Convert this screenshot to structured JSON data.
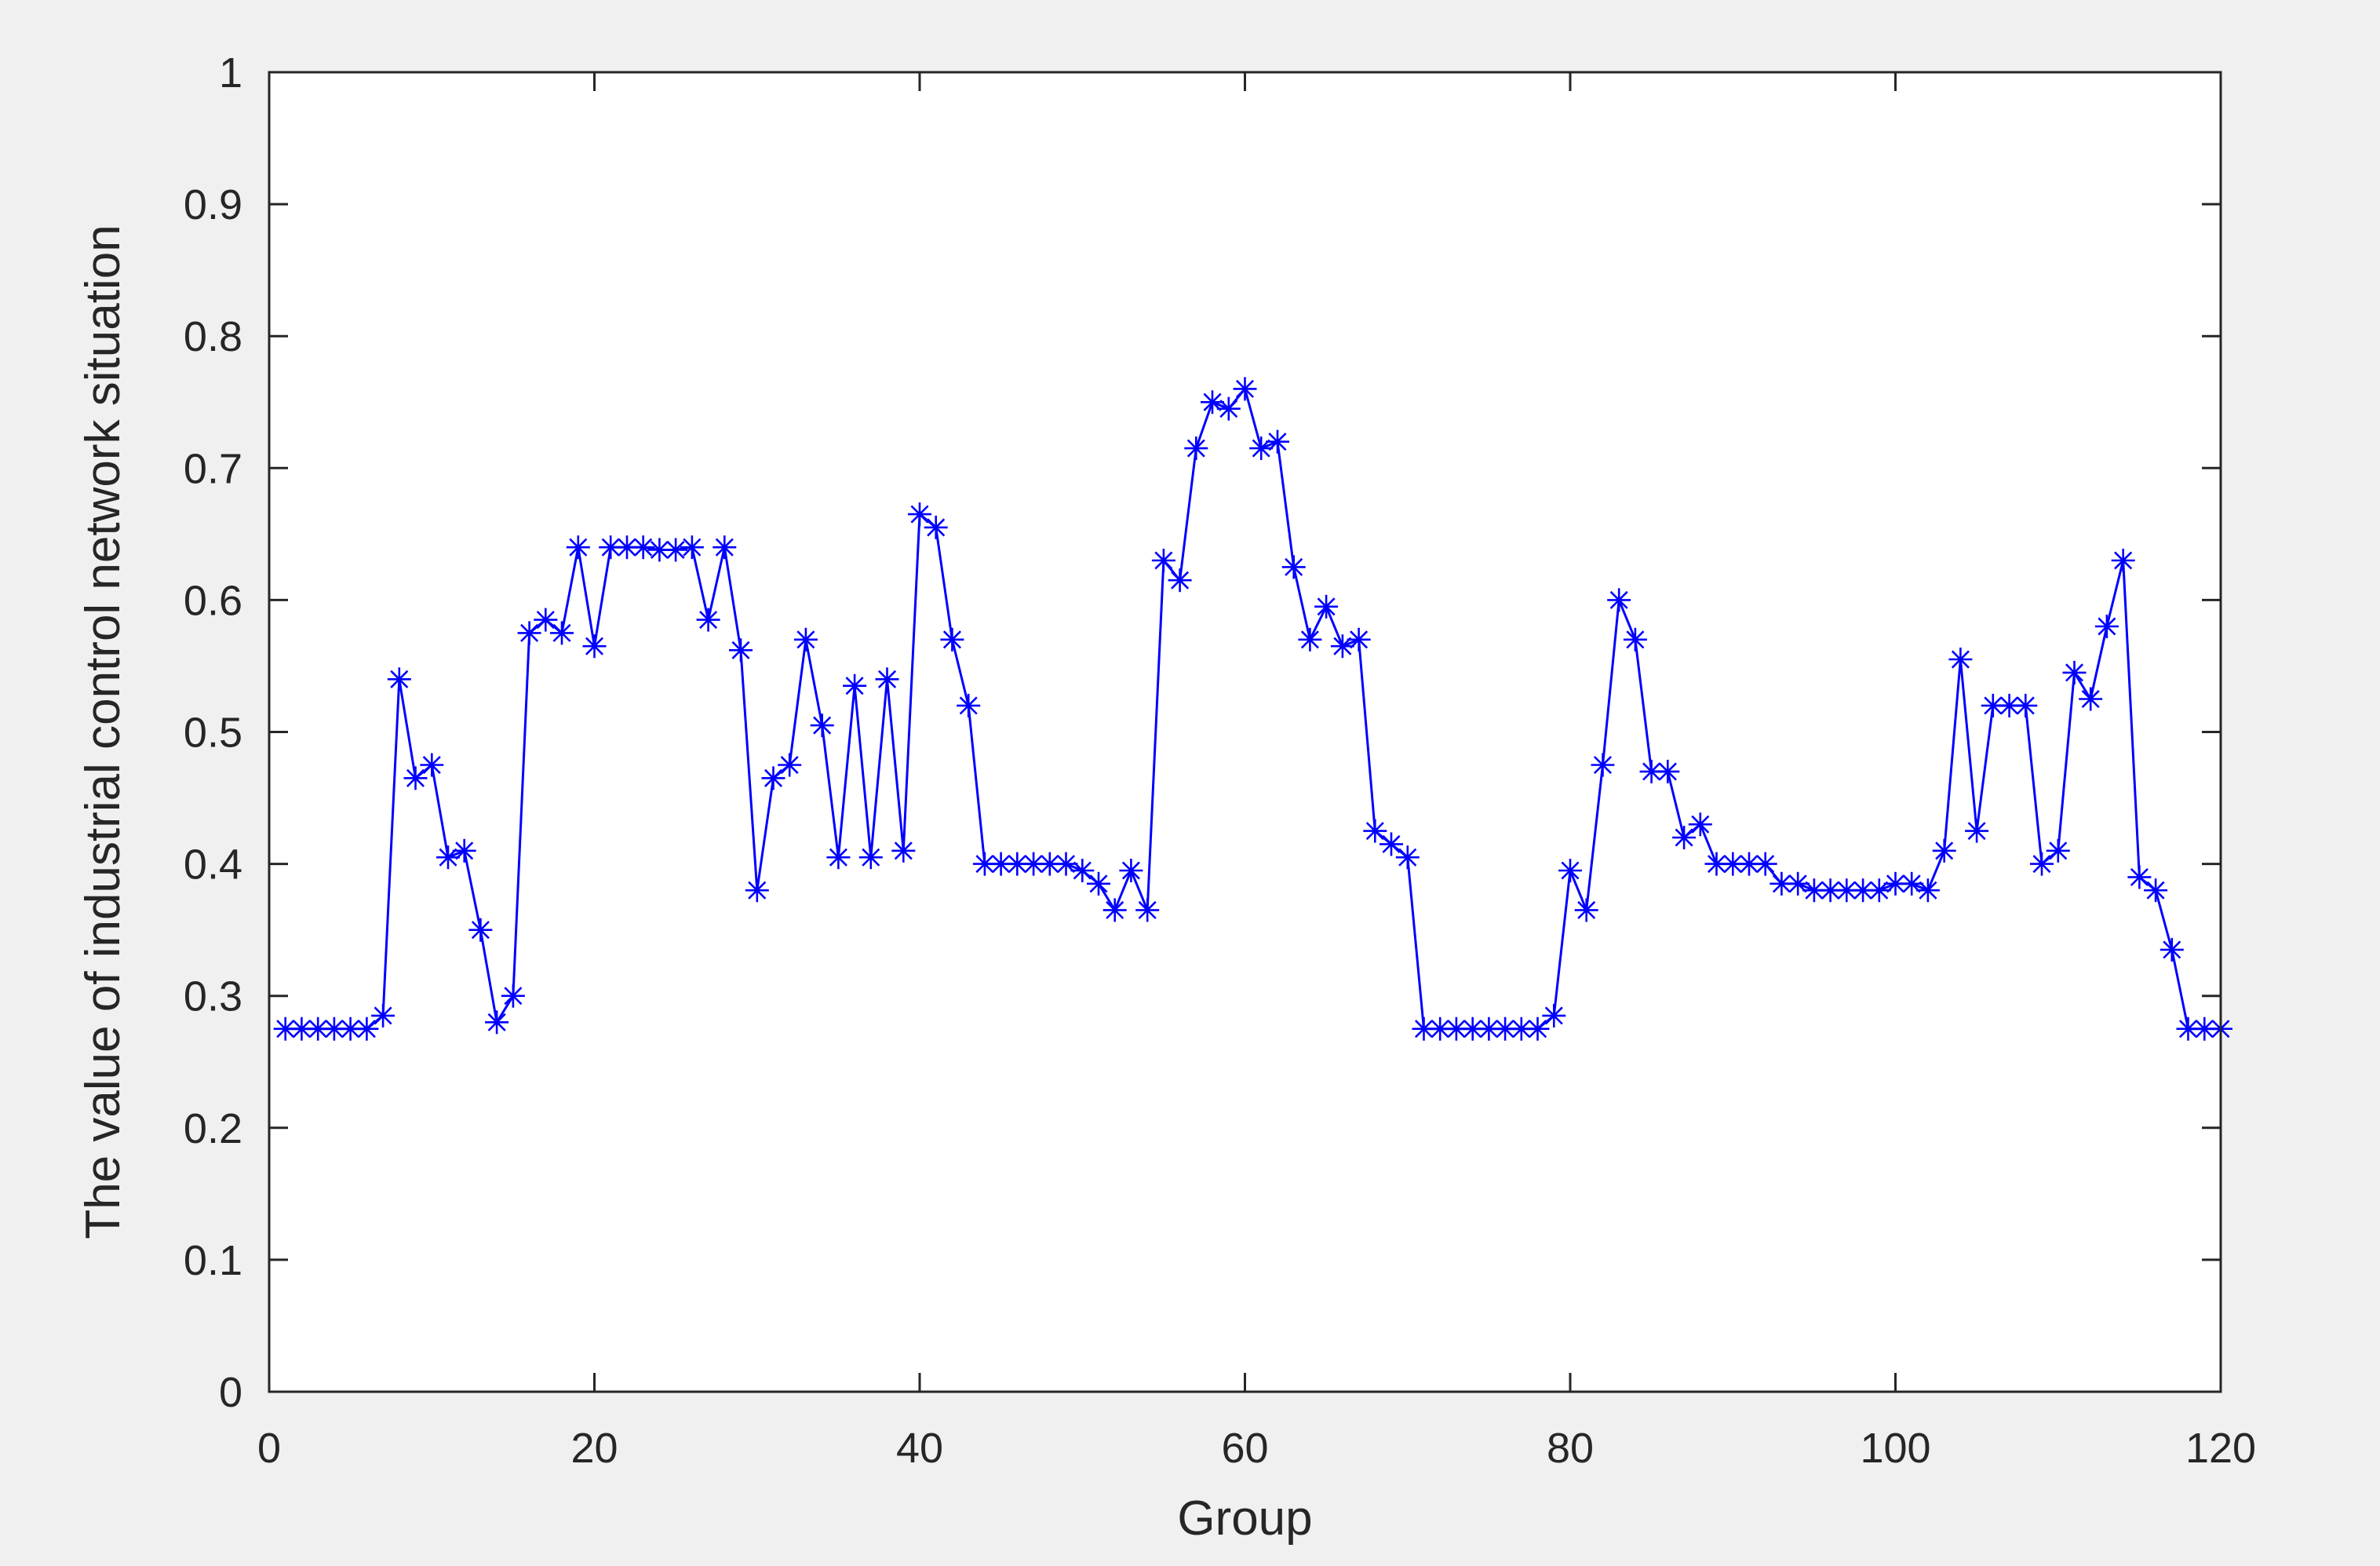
{
  "chart_data": {
    "type": "line",
    "xlabel": "Group",
    "ylabel": "The value of industrial control network  situation",
    "xlim": [
      0,
      120
    ],
    "ylim": [
      0,
      1
    ],
    "xticks": [
      0,
      20,
      40,
      60,
      80,
      100,
      120
    ],
    "yticks": [
      0,
      0.1,
      0.2,
      0.3,
      0.4,
      0.5,
      0.6,
      0.7,
      0.8,
      0.9,
      1
    ],
    "ytick_labels": [
      "0",
      "0.1",
      "0.2",
      "0.3",
      "0.4",
      "0.5",
      "0.6",
      "0.7",
      "0.8",
      "0.9",
      "1"
    ],
    "grid": false,
    "box": true,
    "marker": "asterisk",
    "series": [
      {
        "color": "#0000ff",
        "x": [
          1,
          2,
          3,
          4,
          5,
          6,
          7,
          8,
          9,
          10,
          11,
          12,
          13,
          14,
          15,
          16,
          17,
          18,
          19,
          20,
          21,
          22,
          23,
          24,
          25,
          26,
          27,
          28,
          29,
          30,
          31,
          32,
          33,
          34,
          35,
          36,
          37,
          38,
          39,
          40,
          41,
          42,
          43,
          44,
          45,
          46,
          47,
          48,
          49,
          50,
          51,
          52,
          53,
          54,
          55,
          56,
          57,
          58,
          59,
          60,
          61,
          62,
          63,
          64,
          65,
          66,
          67,
          68,
          69,
          70,
          71,
          72,
          73,
          74,
          75,
          76,
          77,
          78,
          79,
          80,
          81,
          82,
          83,
          84,
          85,
          86,
          87,
          88,
          89,
          90,
          91,
          92,
          93,
          94,
          95,
          96,
          97,
          98,
          99,
          100,
          101,
          102,
          103,
          104,
          105,
          106,
          107,
          108,
          109,
          110,
          111,
          112,
          113,
          114,
          115,
          116,
          117,
          118,
          119,
          120
        ],
        "values": [
          0.275,
          0.275,
          0.275,
          0.275,
          0.275,
          0.275,
          0.285,
          0.54,
          0.465,
          0.475,
          0.405,
          0.41,
          0.35,
          0.28,
          0.3,
          0.575,
          0.585,
          0.575,
          0.64,
          0.565,
          0.64,
          0.64,
          0.64,
          0.638,
          0.638,
          0.64,
          0.585,
          0.64,
          0.562,
          0.38,
          0.465,
          0.475,
          0.57,
          0.505,
          0.405,
          0.535,
          0.405,
          0.54,
          0.41,
          0.665,
          0.655,
          0.57,
          0.52,
          0.4,
          0.4,
          0.4,
          0.4,
          0.4,
          0.4,
          0.395,
          0.385,
          0.365,
          0.395,
          0.365,
          0.63,
          0.615,
          0.715,
          0.75,
          0.745,
          0.76,
          0.715,
          0.72,
          0.625,
          0.57,
          0.595,
          0.565,
          0.57,
          0.425,
          0.415,
          0.405,
          0.275,
          0.275,
          0.275,
          0.275,
          0.275,
          0.275,
          0.275,
          0.275,
          0.285,
          0.395,
          0.365,
          0.475,
          0.6,
          0.57,
          0.47,
          0.47,
          0.42,
          0.43,
          0.4,
          0.4,
          0.4,
          0.4,
          0.385,
          0.385,
          0.38,
          0.38,
          0.38,
          0.38,
          0.38,
          0.385,
          0.385,
          0.38,
          0.41,
          0.555,
          0.425,
          0.52,
          0.52,
          0.52,
          0.4,
          0.41,
          0.545,
          0.525,
          0.58,
          0.63,
          0.39,
          0.38,
          0.335,
          0.275,
          0.275,
          0.275
        ]
      }
    ]
  }
}
